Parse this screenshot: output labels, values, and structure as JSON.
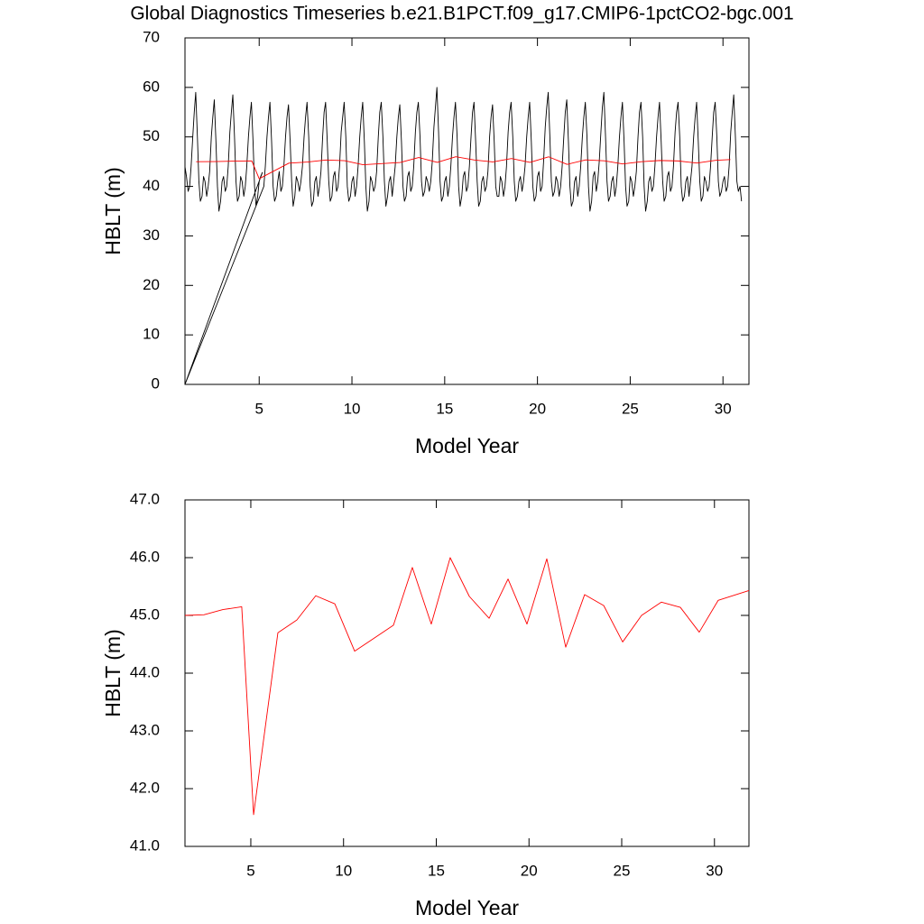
{
  "chart_data": [
    {
      "type": "line",
      "title": "Global Diagnostics Timeseries b.e21.B1PCT.f09_g17.CMIP6-1pctCO2-bgc.001",
      "xlabel": "Model Year",
      "ylabel": "HBLT (m)",
      "xlim": [
        1,
        31.4
      ],
      "ylim": [
        0,
        70
      ],
      "xticks": [
        5,
        10,
        15,
        20,
        25,
        30
      ],
      "yticks": [
        0,
        10,
        20,
        30,
        40,
        50,
        60,
        70
      ],
      "series": [
        {
          "color": "#000000",
          "x": [
            1,
            1.08,
            1.17,
            1.25,
            1.33,
            1.42,
            1.5,
            1.58,
            1.67,
            1.75,
            1.83,
            1.92,
            2,
            2.08,
            2.17,
            2.25,
            2.33,
            2.42,
            2.5,
            2.58,
            2.67,
            2.75,
            2.83,
            2.92,
            3,
            3.08,
            3.17,
            3.25,
            3.33,
            3.42,
            3.5,
            3.58,
            3.67,
            3.75,
            3.83,
            3.92,
            4,
            4.08,
            4.17,
            4.25,
            4.33,
            4.42,
            4.5,
            4.58,
            4.67,
            4.75,
            4.83,
            4.92,
            5,
            5.08,
            5.17,
            1,
            5.25,
            5.33,
            5.42,
            5.5,
            5.58,
            5.67,
            5.75,
            5.83,
            5.92,
            6,
            6.08,
            6.17,
            6.25,
            6.33,
            6.42,
            6.5,
            6.58,
            6.67,
            6.75,
            6.83,
            6.92,
            7,
            7.08,
            7.17,
            7.25,
            7.33,
            7.42,
            7.5,
            7.58,
            7.67,
            7.75,
            7.83,
            7.92,
            8,
            8.08,
            8.17,
            8.25,
            8.33,
            8.42,
            8.5,
            8.58,
            8.67,
            8.75,
            8.83,
            8.92,
            9,
            9.08,
            9.17,
            9.25,
            9.33,
            9.42,
            9.5,
            9.58,
            9.67,
            9.75,
            9.83,
            9.92,
            10,
            10.08,
            10.17,
            10.25,
            10.33,
            10.42,
            10.5,
            10.58,
            10.67,
            10.75,
            10.83,
            10.92,
            11,
            11.08,
            11.17,
            11.25,
            11.33,
            11.42,
            11.5,
            11.58,
            11.67,
            11.75,
            11.83,
            11.92,
            12,
            12.08,
            12.17,
            12.25,
            12.33,
            12.42,
            12.5,
            12.58,
            12.67,
            12.75,
            12.83,
            12.92,
            13,
            13.08,
            13.17,
            13.25,
            13.33,
            13.42,
            13.5,
            13.58,
            13.67,
            13.75,
            13.83,
            13.92,
            14,
            14.08,
            14.17,
            14.25,
            14.33,
            14.42,
            14.5,
            14.58,
            14.67,
            14.75,
            14.83,
            14.92,
            15,
            15.08,
            15.17,
            15.25,
            15.33,
            15.42,
            15.5,
            15.58,
            15.67,
            15.75,
            15.83,
            15.92,
            16,
            16.08,
            16.17,
            16.25,
            16.33,
            16.42,
            16.5,
            16.58,
            16.67,
            16.75,
            16.83,
            16.92,
            17,
            17.08,
            17.17,
            17.25,
            17.33,
            17.42,
            17.5,
            17.58,
            17.67,
            17.75,
            17.83,
            17.92,
            18,
            18.08,
            18.17,
            18.25,
            18.33,
            18.42,
            18.5,
            18.58,
            18.67,
            18.75,
            18.83,
            18.92,
            19,
            19.08,
            19.17,
            19.25,
            19.33,
            19.42,
            19.5,
            19.58,
            19.67,
            19.75,
            19.83,
            19.92,
            20,
            20.08,
            20.17,
            20.25,
            20.33,
            20.42,
            20.5,
            20.58,
            20.67,
            20.75,
            20.83,
            20.92,
            21,
            21.08,
            21.17,
            21.25,
            21.33,
            21.42,
            21.5,
            21.58,
            21.67,
            21.75,
            21.83,
            21.92,
            22,
            22.08,
            22.17,
            22.25,
            22.33,
            22.42,
            22.5,
            22.58,
            22.67,
            22.75,
            22.83,
            22.92,
            23,
            23.08,
            23.17,
            23.25,
            23.33,
            23.42,
            23.5,
            23.58,
            23.67,
            23.75,
            23.83,
            23.92,
            24,
            24.08,
            24.17,
            24.25,
            24.33,
            24.42,
            24.5,
            24.58,
            24.67,
            24.75,
            24.83,
            24.92,
            25,
            25.08,
            25.17,
            25.25,
            25.33,
            25.42,
            25.5,
            25.58,
            25.67,
            25.75,
            25.83,
            25.92,
            26,
            26.08,
            26.17,
            26.25,
            26.33,
            26.42,
            26.5,
            26.58,
            26.67,
            26.75,
            26.83,
            26.92,
            27,
            27.08,
            27.17,
            27.25,
            27.33,
            27.42,
            27.5,
            27.58,
            27.67,
            27.75,
            27.83,
            27.92,
            28,
            28.08,
            28.17,
            28.25,
            28.33,
            28.42,
            28.5,
            28.58,
            28.67,
            28.75,
            28.83,
            28.92,
            29,
            29.08,
            29.17,
            29.25,
            29.33,
            29.42,
            29.5,
            29.58,
            29.67,
            29.75,
            29.83,
            29.92,
            30,
            30.08,
            30.17,
            30.25,
            30.33,
            30.42,
            30.5,
            30.58,
            30.67,
            30.75,
            30.83,
            30.92,
            31
          ],
          "values": [
            44,
            42,
            39,
            40,
            44,
            50,
            55,
            59,
            50,
            41,
            37,
            38,
            42,
            41,
            38,
            40,
            43,
            50,
            54,
            57.5,
            49,
            40,
            35,
            37,
            41,
            42,
            39,
            40,
            44,
            51,
            55,
            58.5,
            50,
            41,
            37,
            38,
            42,
            41,
            38,
            40,
            44,
            50,
            54,
            57,
            49,
            40,
            36,
            38,
            41,
            42,
            42.8,
            0,
            40,
            44,
            50,
            54,
            57,
            49,
            40,
            37,
            38,
            41,
            43,
            39,
            40,
            44,
            50,
            54,
            56.5,
            49,
            41,
            36,
            38,
            42,
            41,
            39,
            41,
            44,
            50,
            54,
            57,
            50,
            40,
            36,
            37,
            41,
            42,
            38,
            40,
            43,
            50,
            55,
            57,
            49,
            41,
            37,
            38,
            42,
            43,
            39,
            40,
            44,
            51,
            54,
            57,
            50,
            40,
            37,
            38,
            41,
            42,
            38,
            40,
            44,
            50,
            54,
            57,
            49,
            40,
            35,
            37,
            42,
            41,
            39,
            40,
            43,
            50,
            55,
            57,
            50,
            41,
            36,
            38,
            41,
            42,
            38,
            41,
            44,
            50,
            54,
            56.5,
            49,
            40,
            37,
            38,
            42,
            43,
            39,
            40,
            44,
            51,
            55,
            57,
            50,
            41,
            38,
            39,
            42,
            41,
            39,
            41,
            45,
            52,
            56,
            60,
            51,
            41,
            37,
            38,
            41,
            42,
            38,
            40,
            44,
            50,
            54,
            57,
            50,
            40,
            36,
            38,
            42,
            43,
            39,
            40,
            44,
            50,
            55,
            57,
            49,
            41,
            36,
            37,
            41,
            42,
            39,
            40,
            43,
            50,
            54,
            56.5,
            49,
            40,
            38,
            38,
            42,
            41,
            38,
            40,
            44,
            51,
            55,
            57,
            50,
            41,
            37,
            38,
            41,
            42,
            39,
            41,
            44,
            50,
            54,
            57,
            49,
            40,
            37,
            38,
            42,
            43,
            39,
            40,
            45,
            52,
            56,
            59,
            50,
            41,
            38,
            39,
            42,
            41,
            38,
            40,
            44,
            50,
            55,
            57.5,
            49,
            40,
            36,
            37,
            41,
            42,
            38,
            40,
            44,
            50,
            54,
            57,
            50,
            40,
            35,
            37,
            42,
            43,
            39,
            41,
            45,
            51,
            56,
            59,
            50,
            41,
            37,
            38,
            41,
            42,
            38,
            40,
            44,
            50,
            54,
            57,
            49,
            40,
            36,
            37,
            42,
            41,
            38,
            40,
            43,
            50,
            55,
            57,
            50,
            40,
            35,
            37,
            41,
            42,
            39,
            40,
            44,
            50,
            54,
            57,
            49,
            41,
            37,
            38,
            42,
            43,
            39,
            40,
            44,
            51,
            55,
            57,
            50,
            40,
            37,
            38,
            41,
            42,
            38,
            41,
            44,
            50,
            54,
            57,
            49,
            41,
            37,
            38,
            42,
            41,
            39,
            40,
            44,
            50,
            55,
            57,
            50,
            41,
            38,
            39,
            41,
            42,
            39,
            40,
            44,
            51,
            55,
            58.5,
            50,
            41,
            39,
            40,
            37
          ]
        },
        {
          "color": "#ff0000",
          "x": [
            1.6,
            2.6,
            3.6,
            4.6,
            5.0,
            6.6,
            7.6,
            8.6,
            9.6,
            10.6,
            11.6,
            12.6,
            13.6,
            14.6,
            15.6,
            16.6,
            17.6,
            18.6,
            19.6,
            20.6,
            21.6,
            22.6,
            23.6,
            24.6,
            25.6,
            26.6,
            27.6,
            28.6,
            29.6,
            30.4
          ],
          "values": [
            45.0,
            45.01,
            45.1,
            45.15,
            41.55,
            44.7,
            44.92,
            45.34,
            45.2,
            44.38,
            44.6,
            44.83,
            45.83,
            44.85,
            46.0,
            45.33,
            44.95,
            45.63,
            44.85,
            45.98,
            44.45,
            45.36,
            45.17,
            44.54,
            45.0,
            45.23,
            45.14,
            44.71,
            45.26,
            45.43
          ]
        }
      ]
    },
    {
      "type": "line",
      "xlabel": "Model Year",
      "ylabel": "HBLT (m)",
      "xlim": [
        1.45,
        31.86
      ],
      "ylim": [
        41,
        47
      ],
      "xticks": [
        5,
        10,
        15,
        20,
        25,
        30
      ],
      "yticks": [
        {
          "value": 41,
          "label": "41.0"
        },
        {
          "value": 42,
          "label": "42.0"
        },
        {
          "value": 43,
          "label": "43.0"
        },
        {
          "value": 44,
          "label": "44.0"
        },
        {
          "value": 45,
          "label": "45.0"
        },
        {
          "value": 46,
          "label": "46.0"
        },
        {
          "value": 47,
          "label": "47.0"
        }
      ],
      "series": [
        {
          "color": "#ff0000",
          "x": [
            1.45,
            2.47,
            3.49,
            4.51,
            5.15,
            6.46,
            7.48,
            8.5,
            9.53,
            10.6,
            11.62,
            12.69,
            13.71,
            14.73,
            15.75,
            16.78,
            17.85,
            18.87,
            19.89,
            20.96,
            21.98,
            23.0,
            24.03,
            25.05,
            26.07,
            27.14,
            28.16,
            29.18,
            30.2,
            31.86
          ],
          "values": [
            45.0,
            45.01,
            45.1,
            45.15,
            41.55,
            44.7,
            44.92,
            45.34,
            45.2,
            44.38,
            44.6,
            44.83,
            45.83,
            44.85,
            46.0,
            45.33,
            44.95,
            45.63,
            44.85,
            45.98,
            44.45,
            45.36,
            45.17,
            44.54,
            45.0,
            45.23,
            45.14,
            44.71,
            45.26,
            45.43
          ]
        }
      ]
    }
  ]
}
